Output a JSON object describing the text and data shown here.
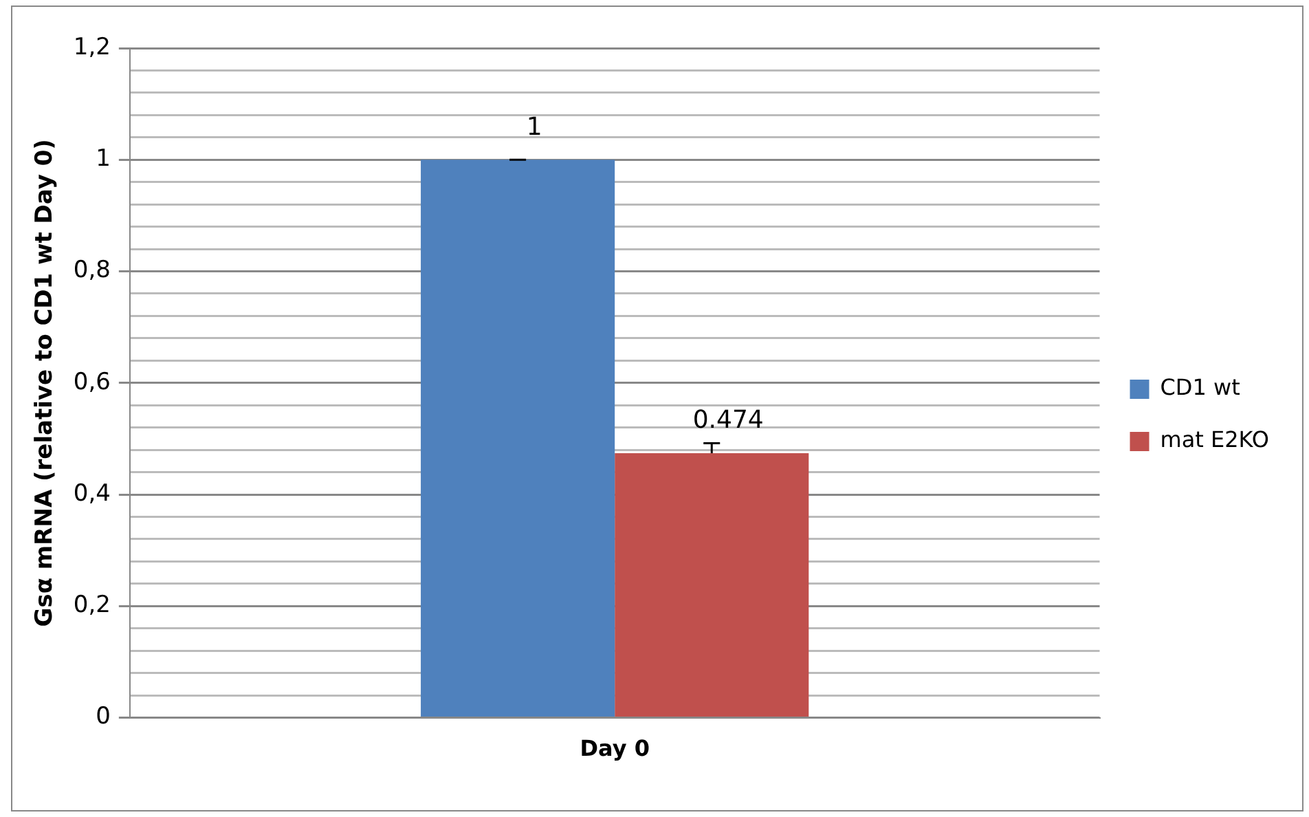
{
  "chart_data": {
    "type": "bar",
    "ylabel": "Gsα mRNA (relative to CD1 wt Day 0)",
    "categories": [
      "Day 0"
    ],
    "series": [
      {
        "name": "CD1 wt",
        "color": "#4f81bd",
        "values": [
          1
        ],
        "errors": [
          [
            1,
            1
          ]
        ]
      },
      {
        "name": "mat E2KO",
        "color": "#c0504d",
        "values": [
          0.474
        ],
        "errors": [
          [
            0.474,
            0.492
          ]
        ]
      }
    ],
    "ylim": [
      0,
      1.2
    ],
    "yticks": [
      {
        "value": 0,
        "label": "0"
      },
      {
        "value": 0.04,
        "label": null
      },
      {
        "value": 0.08,
        "label": null
      },
      {
        "value": 0.12,
        "label": null
      },
      {
        "value": 0.16,
        "label": null
      },
      {
        "value": 0.2,
        "label": "0,2"
      },
      {
        "value": 0.24,
        "label": null
      },
      {
        "value": 0.28,
        "label": null
      },
      {
        "value": 0.32,
        "label": null
      },
      {
        "value": 0.36,
        "label": null
      },
      {
        "value": 0.4,
        "label": "0,4"
      },
      {
        "value": 0.44,
        "label": null
      },
      {
        "value": 0.48,
        "label": null
      },
      {
        "value": 0.52,
        "label": null
      },
      {
        "value": 0.56,
        "label": null
      },
      {
        "value": 0.6,
        "label": "0,6"
      },
      {
        "value": 0.64,
        "label": null
      },
      {
        "value": 0.68,
        "label": null
      },
      {
        "value": 0.72,
        "label": null
      },
      {
        "value": 0.76,
        "label": null
      },
      {
        "value": 0.8,
        "label": "0,8"
      },
      {
        "value": 0.84,
        "label": null
      },
      {
        "value": 0.88,
        "label": null
      },
      {
        "value": 0.92,
        "label": null
      },
      {
        "value": 0.96,
        "label": null
      },
      {
        "value": 1,
        "label": "1"
      },
      {
        "value": 1.04,
        "label": null
      },
      {
        "value": 1.08,
        "label": null
      },
      {
        "value": 1.12,
        "label": null
      },
      {
        "value": 1.16,
        "label": null
      },
      {
        "value": 1.2,
        "label": "1,2"
      }
    ],
    "grid": "y",
    "legend": "right",
    "data_labels": true
  }
}
